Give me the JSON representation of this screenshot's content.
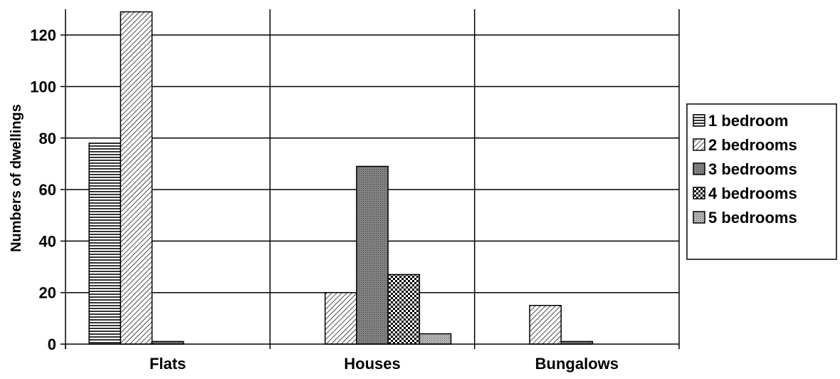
{
  "chart_data": {
    "type": "bar",
    "title": "",
    "xlabel": "",
    "ylabel": "Numbers of dwellings",
    "categories": [
      "Flats",
      "Houses",
      "Bungalows"
    ],
    "ylim": [
      0,
      130
    ],
    "yticks": [
      0,
      20,
      40,
      60,
      80,
      100,
      120
    ],
    "grid": true,
    "legend_position": "right",
    "series": [
      {
        "name": "1 bedroom",
        "values": [
          78,
          0,
          0
        ],
        "pattern": "horizontal-lines"
      },
      {
        "name": "2 bedrooms",
        "values": [
          129,
          20,
          15
        ],
        "pattern": "diagonal-lines"
      },
      {
        "name": "3 bedrooms",
        "values": [
          1,
          69,
          1
        ],
        "pattern": "fine-dots-dark"
      },
      {
        "name": "4 bedrooms",
        "values": [
          0,
          27,
          0
        ],
        "pattern": "checker"
      },
      {
        "name": "5 bedrooms",
        "values": [
          0,
          4,
          0
        ],
        "pattern": "fine-dots-light"
      }
    ]
  }
}
